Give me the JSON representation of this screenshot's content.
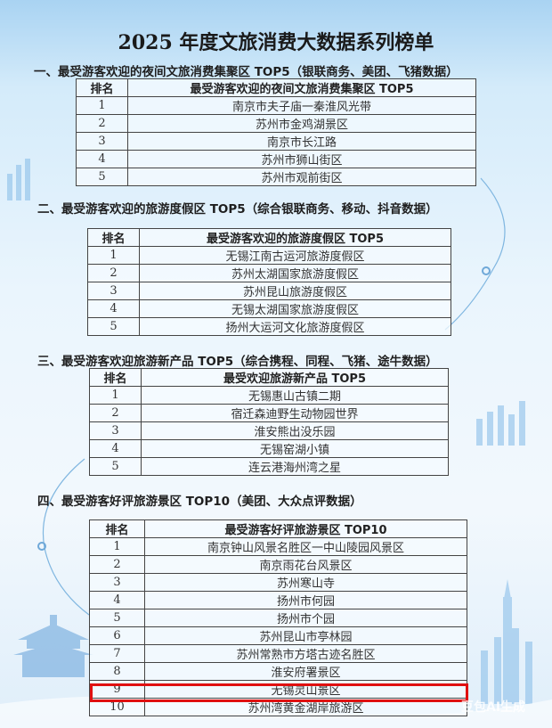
{
  "title": "2025 年度文旅消费大数据系列榜单",
  "rank_header": "排名",
  "sections": [
    {
      "heading": "一、最受游客欢迎的夜间文旅消费集聚区 TOP5（银联商务、美团、飞猪数据）",
      "column": "最受游客欢迎的夜间文旅消费集聚区 TOP5",
      "rows": [
        {
          "rank": "1",
          "name": "南京市夫子庙一秦淮风光带"
        },
        {
          "rank": "2",
          "name": "苏州市金鸡湖景区"
        },
        {
          "rank": "3",
          "name": "南京市长江路"
        },
        {
          "rank": "4",
          "name": "苏州市狮山街区"
        },
        {
          "rank": "5",
          "name": "苏州市观前街区"
        }
      ]
    },
    {
      "heading": "二、最受游客欢迎的旅游度假区 TOP5（综合银联商务、移动、抖音数据）",
      "column": "最受游客欢迎的旅游度假区 TOP5",
      "rows": [
        {
          "rank": "1",
          "name": "无锡江南古运河旅游度假区"
        },
        {
          "rank": "2",
          "name": "苏州太湖国家旅游度假区"
        },
        {
          "rank": "3",
          "name": "苏州昆山旅游度假区"
        },
        {
          "rank": "4",
          "name": "无锡太湖国家旅游度假区"
        },
        {
          "rank": "5",
          "name": "扬州大运河文化旅游度假区"
        }
      ]
    },
    {
      "heading": "三、最受游客欢迎旅游新产品 TOP5（综合携程、同程、飞猪、途牛数据）",
      "column": "最受欢迎旅游新产品 TOP5",
      "rows": [
        {
          "rank": "1",
          "name": "无锡惠山古镇二期"
        },
        {
          "rank": "2",
          "name": "宿迁森迪野生动物园世界"
        },
        {
          "rank": "3",
          "name": "淮安熊出没乐园"
        },
        {
          "rank": "4",
          "name": "无锡窑湖小镇"
        },
        {
          "rank": "5",
          "name": "连云港海州湾之星"
        }
      ]
    },
    {
      "heading": "四、最受游客好评旅游景区 TOP10（美团、大众点评数据）",
      "column": "最受游客好评旅游景区 TOP10",
      "rows": [
        {
          "rank": "1",
          "name": "南京钟山风景名胜区一中山陵园风景区"
        },
        {
          "rank": "2",
          "name": "南京雨花台风景区"
        },
        {
          "rank": "3",
          "name": "苏州寒山寺"
        },
        {
          "rank": "4",
          "name": "扬州市何园"
        },
        {
          "rank": "5",
          "name": "扬州市个园"
        },
        {
          "rank": "6",
          "name": "苏州昆山市亭林园"
        },
        {
          "rank": "7",
          "name": "苏州常熟市方塔古迹名胜区"
        },
        {
          "rank": "8",
          "name": "淮安府署景区"
        },
        {
          "rank": "9",
          "name": "无锡灵山景区"
        },
        {
          "rank": "10",
          "name": "苏州湾黄金湖岸旅游区"
        }
      ]
    }
  ],
  "highlight_color": "#e01010",
  "watermark": "豆包AI生成"
}
